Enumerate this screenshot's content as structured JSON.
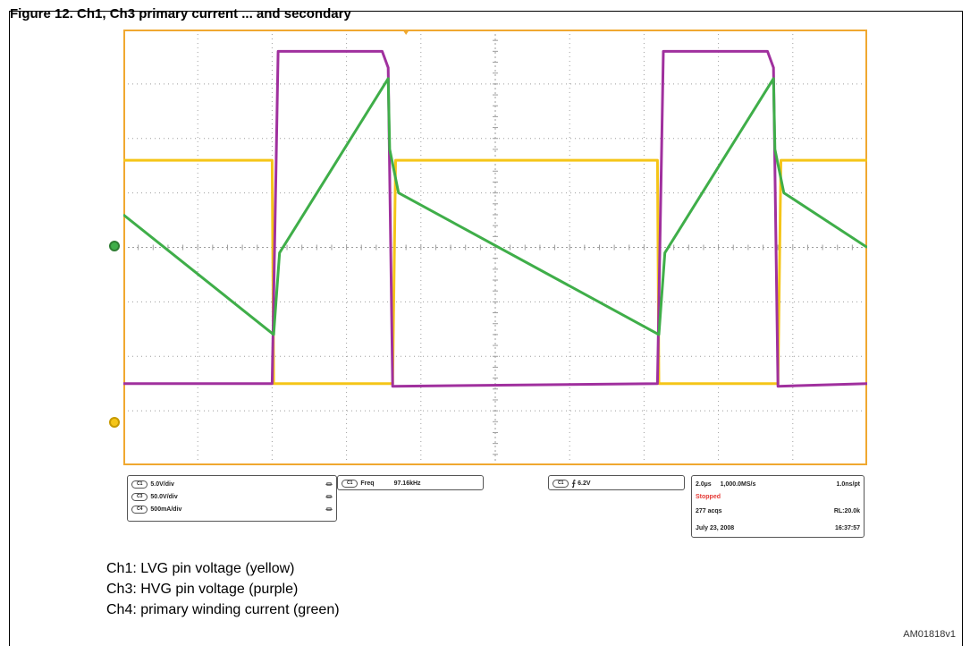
{
  "figure_title": "Figure 12. Ch1, Ch3 primary current ... and secondary",
  "scope_panel": {
    "channels": [
      {
        "badge": "C1",
        "scale": "5.0V/div"
      },
      {
        "badge": "C3",
        "scale": "50.0V/div"
      },
      {
        "badge": "C4",
        "scale": "500mA/div"
      }
    ],
    "measure": {
      "badge": "C1",
      "name": "Freq",
      "value": "97.16kHz"
    },
    "trigger": {
      "badge": "C1",
      "level": "6.2V"
    },
    "timebase": {
      "horizontal": "2.0µs",
      "sample_rate": "1,000.0MS/s",
      "resolution": "1.0ns/pt",
      "status": "Stopped",
      "acqs": "277 acqs",
      "record_length": "RL:20.0k",
      "date": "July 23, 2008",
      "time": "16:37:57"
    }
  },
  "captions": [
    "Ch1: LVG pin voltage (yellow)",
    "Ch3: HVG pin voltage (purple)",
    "Ch4: primary winding current (green)"
  ],
  "reference_code": "AM01818v1",
  "colors": {
    "grid_border": "#f0a830",
    "grid_lines": "#9e9e9e",
    "ch1": "#f5c518",
    "ch3": "#a0309e",
    "ch4": "#3fae49"
  },
  "chart_data": {
    "type": "line",
    "x_divisions": 10,
    "y_divisions": 8,
    "x_unit": "div",
    "y_unit": "div",
    "ylim": [
      -4,
      4
    ],
    "xlim": [
      0,
      10
    ],
    "series": [
      {
        "name": "Ch1",
        "color": "#f5c518",
        "x": [
          0,
          2.0,
          2.02,
          3.62,
          3.66,
          7.18,
          7.2,
          8.8,
          8.84,
          10
        ],
        "y": [
          1.6,
          1.6,
          -2.5,
          -2.5,
          1.6,
          1.6,
          -2.5,
          -2.5,
          1.6,
          1.6
        ]
      },
      {
        "name": "Ch3",
        "color": "#a0309e",
        "x": [
          0,
          2.0,
          2.08,
          3.48,
          3.56,
          3.62,
          7.18,
          7.26,
          8.66,
          8.74,
          8.8,
          10
        ],
        "y": [
          -2.5,
          -2.5,
          3.6,
          3.6,
          3.3,
          -2.55,
          -2.5,
          3.6,
          3.6,
          3.3,
          -2.55,
          -2.5
        ]
      },
      {
        "name": "Ch4",
        "color": "#3fae49",
        "x": [
          0,
          2.02,
          2.1,
          3.56,
          3.58,
          3.7,
          7.2,
          7.28,
          8.74,
          8.76,
          8.88,
          10
        ],
        "y": [
          0.6,
          -1.6,
          -0.1,
          3.1,
          1.8,
          1.0,
          -1.6,
          -0.1,
          3.1,
          1.8,
          1.0,
          0.0
        ]
      }
    ],
    "channel_markers": [
      {
        "name": "ground reference",
        "channel": "Ch4",
        "y": 0,
        "color": "#3fae49"
      },
      {
        "name": "ground reference",
        "channel": "Ch1",
        "y": -2.5,
        "color": "#f5c518"
      }
    ],
    "trigger_position_x": 3.8
  }
}
